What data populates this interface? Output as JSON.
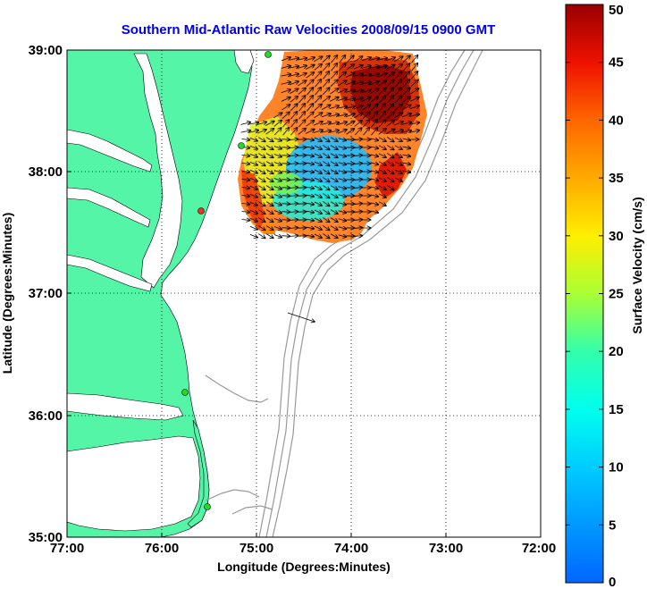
{
  "title": "Southern Mid-Atlantic Raw Velocities 2008/09/15 0900 GMT",
  "x_axis": {
    "label": "Longitude (Degrees:Minutes)",
    "ticks": [
      "77:00",
      "76:00",
      "75:00",
      "74:00",
      "73:00",
      "72:00"
    ]
  },
  "y_axis": {
    "label": "Latitude (Degrees:Minutes)",
    "ticks": [
      "39:00",
      "38:00",
      "37:00",
      "36:00",
      "35:00"
    ]
  },
  "colorbar": {
    "label": "Surface Velocity (cm/s)",
    "ticks": [
      "0",
      "5",
      "10",
      "15",
      "20",
      "25",
      "30",
      "35",
      "40",
      "45",
      "50"
    ],
    "range": [
      0,
      50
    ]
  },
  "colors": {
    "land": "#55f5a8",
    "ocean": "#ffffff",
    "bathymetry": "#999999",
    "title": "#0000ee",
    "site_marker": "#22dd22",
    "site_marker_alt": "#ee3322"
  },
  "map_extent": {
    "lon": [
      -77,
      -72
    ],
    "lat": [
      35,
      39
    ]
  }
}
